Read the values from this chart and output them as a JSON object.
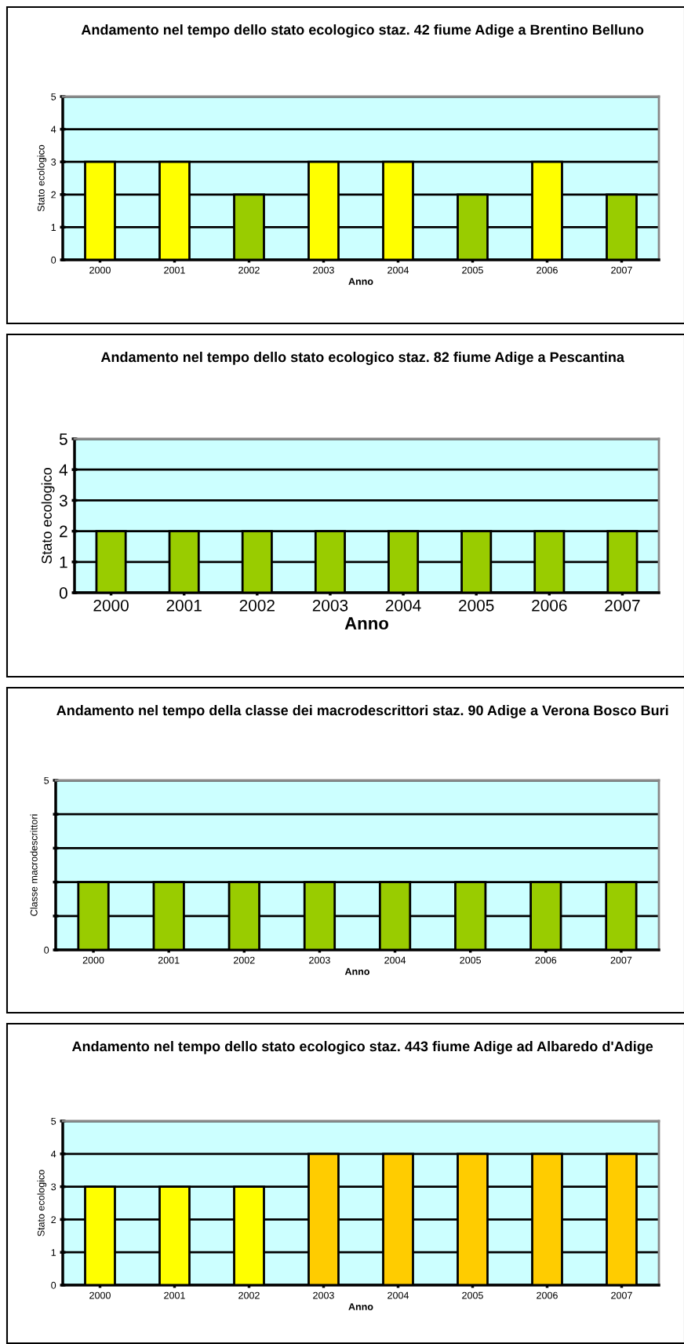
{
  "chart_data": [
    {
      "type": "bar",
      "title": "Andamento nel tempo dello stato ecologico staz. 42 fiume Adige a Brentino Belluno",
      "xlabel": "Anno",
      "ylabel": "Stato ecologico",
      "categories": [
        "2000",
        "2001",
        "2002",
        "2003",
        "2004",
        "2005",
        "2006",
        "2007"
      ],
      "values": [
        3,
        3,
        2,
        3,
        3,
        2,
        3,
        2
      ],
      "colors": [
        "#ffff00",
        "#ffff00",
        "#99cc00",
        "#ffff00",
        "#ffff00",
        "#99cc00",
        "#ffff00",
        "#99cc00"
      ],
      "ylim": [
        0,
        5
      ],
      "yticks": [
        0,
        1,
        2,
        3,
        4,
        5
      ],
      "grid": "y",
      "legend": false
    },
    {
      "type": "bar",
      "title": "Andamento nel tempo dello stato ecologico staz. 82 fiume Adige a Pescantina",
      "xlabel": "Anno",
      "ylabel": "Stato ecologico",
      "categories": [
        "2000",
        "2001",
        "2002",
        "2003",
        "2004",
        "2005",
        "2006",
        "2007"
      ],
      "values": [
        2,
        2,
        2,
        2,
        2,
        2,
        2,
        2
      ],
      "colors": [
        "#99cc00",
        "#99cc00",
        "#99cc00",
        "#99cc00",
        "#99cc00",
        "#99cc00",
        "#99cc00",
        "#99cc00"
      ],
      "ylim": [
        0,
        5
      ],
      "yticks": [
        0,
        1,
        2,
        3,
        4,
        5
      ],
      "grid": "y",
      "legend": false
    },
    {
      "type": "bar",
      "title": "Andamento nel tempo della classe dei macrodescrittori staz. 90 Adige a Verona Bosco Buri",
      "xlabel": "Anno",
      "ylabel": "Classe macrodescrittori",
      "categories": [
        "2000",
        "2001",
        "2002",
        "2003",
        "2004",
        "2005",
        "2006",
        "2007"
      ],
      "values": [
        2,
        2,
        2,
        2,
        2,
        2,
        2,
        2
      ],
      "colors": [
        "#99cc00",
        "#99cc00",
        "#99cc00",
        "#99cc00",
        "#99cc00",
        "#99cc00",
        "#99cc00",
        "#99cc00"
      ],
      "ylim": [
        0,
        5
      ],
      "yticks": [
        0,
        {
          "value": 1,
          "label": null
        },
        {
          "value": 2,
          "label": null
        },
        {
          "value": 3,
          "label": null
        },
        {
          "value": 4,
          "label": null
        },
        5
      ],
      "grid": "y",
      "legend": false
    },
    {
      "type": "bar",
      "title": "Andamento nel tempo dello stato ecologico staz. 443 fiume Adige ad Albaredo d'Adige",
      "xlabel": "Anno",
      "ylabel": "Stato ecologico",
      "categories": [
        "2000",
        "2001",
        "2002",
        "2003",
        "2004",
        "2005",
        "2006",
        "2007"
      ],
      "values": [
        3,
        3,
        3,
        4,
        4,
        4,
        4,
        4
      ],
      "colors": [
        "#ffff00",
        "#ffff00",
        "#ffff00",
        "#ffcc00",
        "#ffcc00",
        "#ffcc00",
        "#ffcc00",
        "#ffcc00"
      ],
      "ylim": [
        0,
        5
      ],
      "yticks": [
        0,
        1,
        2,
        3,
        4,
        5
      ],
      "grid": "y",
      "legend": false
    }
  ]
}
